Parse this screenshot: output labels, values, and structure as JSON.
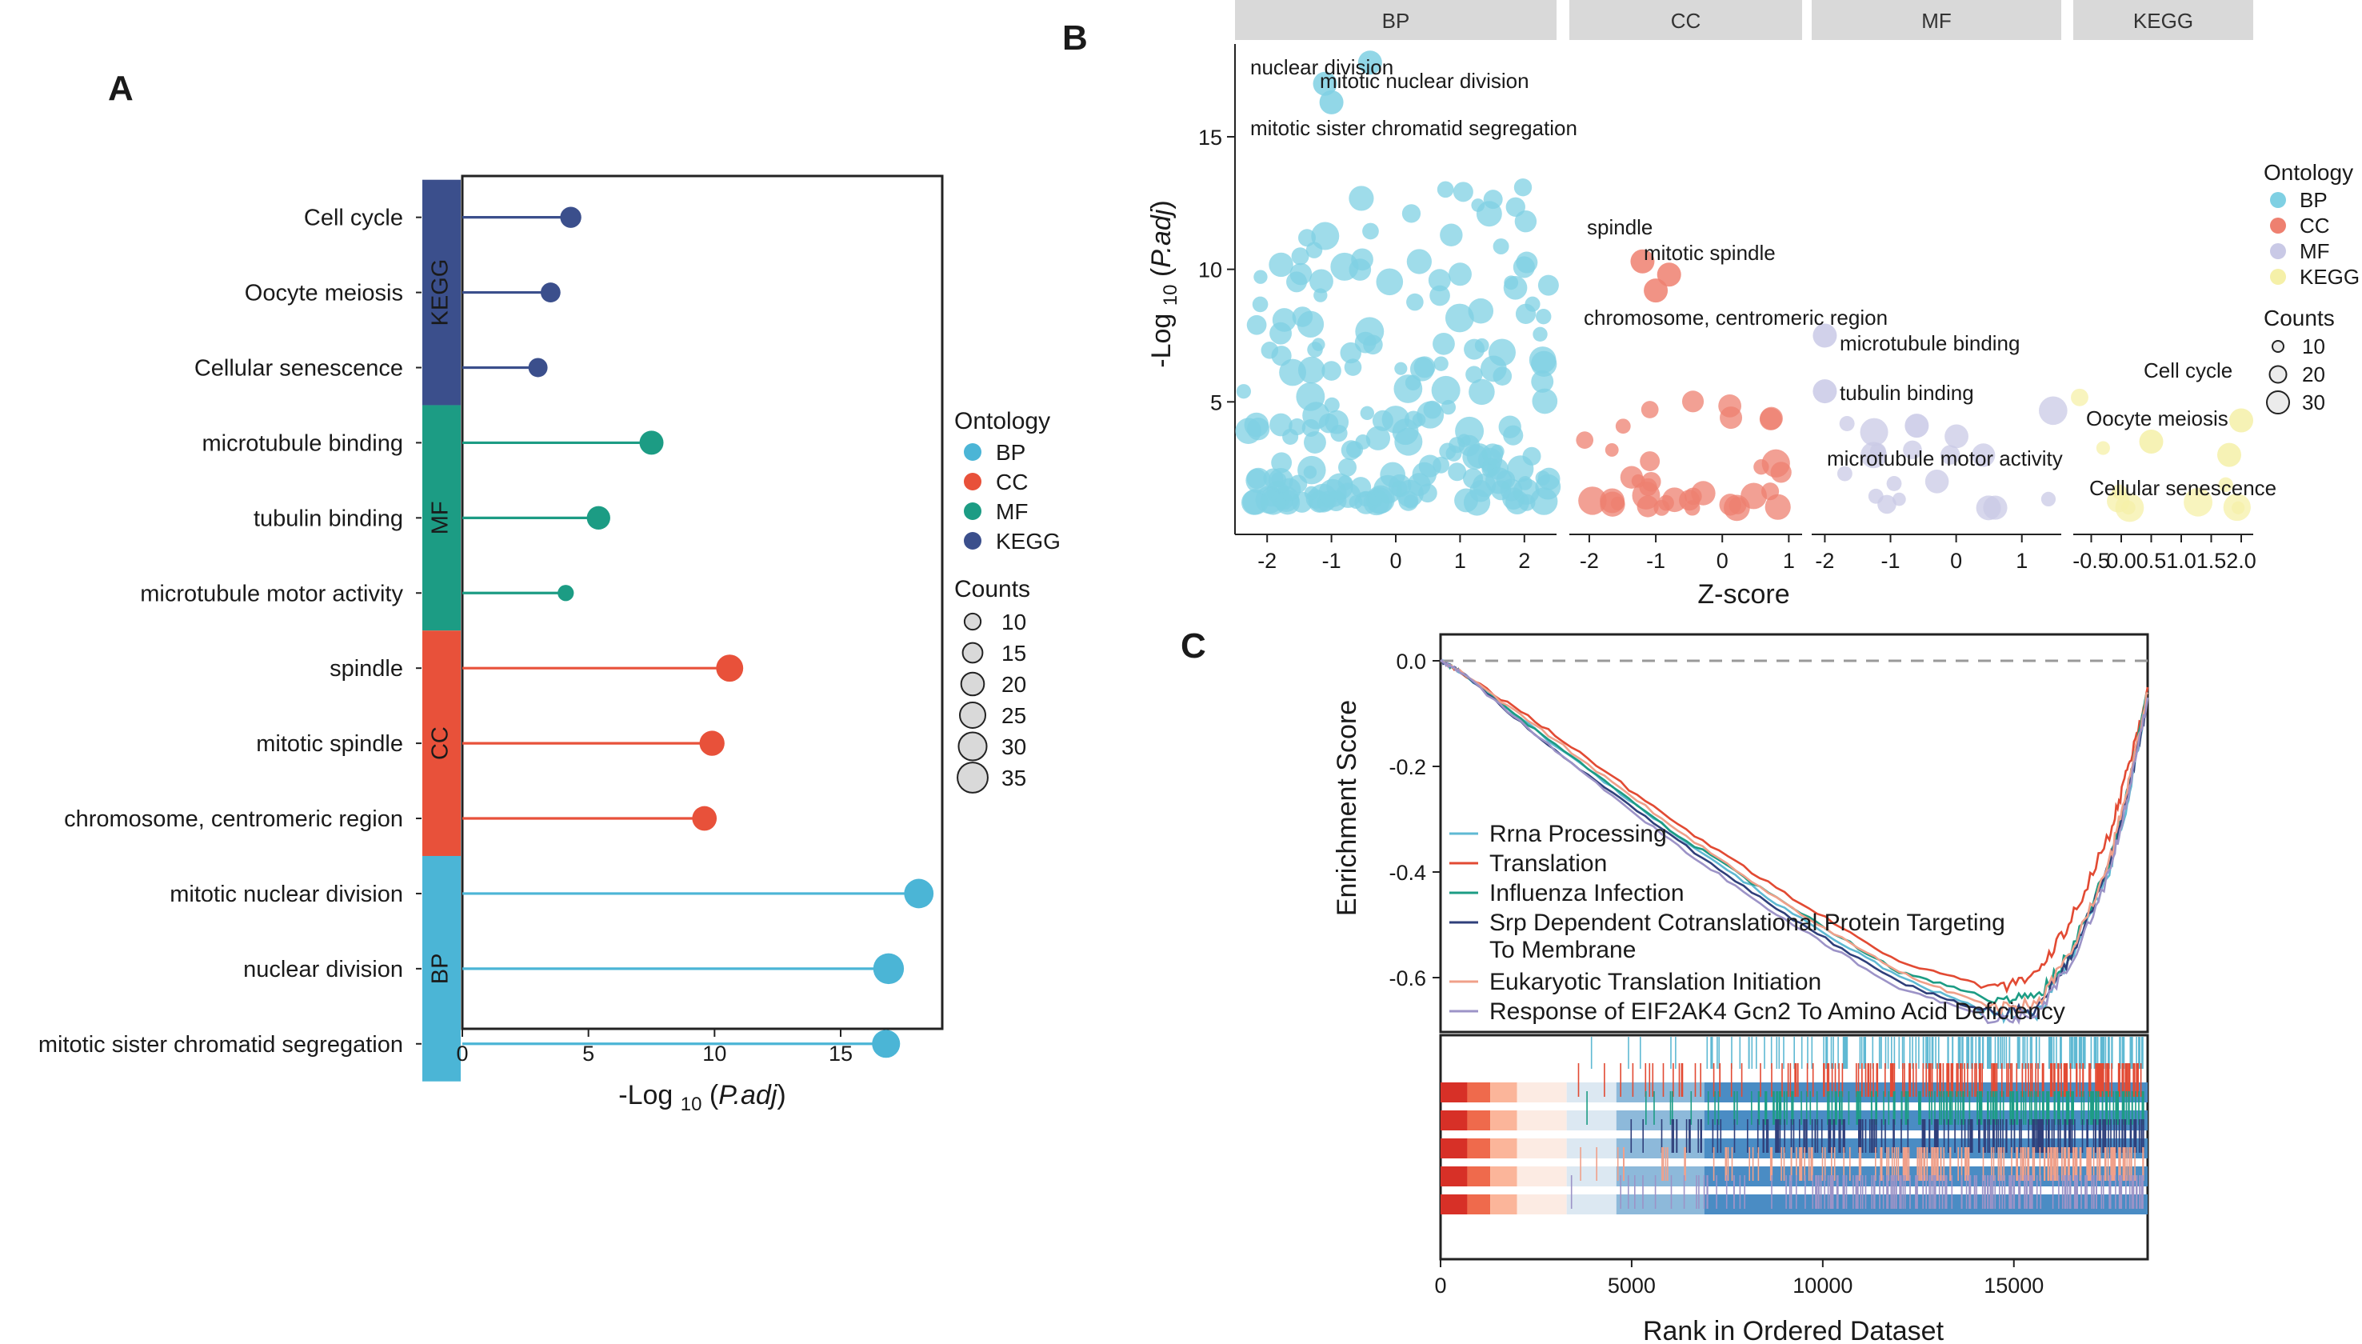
{
  "panels": {
    "a": "A",
    "b": "B",
    "c": "C"
  },
  "chart_data": [
    {
      "type": "lollipop",
      "panel": "A",
      "xlabel": "-Log 10 (P.adj)",
      "xlabel_parts": {
        "pre": "-Log",
        "sub": "10",
        "open": "(",
        "italic": "P.adj",
        "close": ")"
      },
      "xlim": [
        0,
        19
      ],
      "xticks": [
        0,
        5,
        10,
        15
      ],
      "groups": [
        {
          "name": "KEGG",
          "color": "#3B4F8C",
          "terms": [
            {
              "label": "Cell cycle",
              "value": 4.3,
              "count": 17
            },
            {
              "label": "Oocyte meiosis",
              "value": 3.5,
              "count": 15
            },
            {
              "label": "Cellular senescence",
              "value": 3.0,
              "count": 14
            }
          ]
        },
        {
          "name": "MF",
          "color": "#1C9C84",
          "terms": [
            {
              "label": "microtubule binding",
              "value": 7.5,
              "count": 22
            },
            {
              "label": "tubulin binding",
              "value": 5.4,
              "count": 21
            },
            {
              "label": "microtubule motor activity",
              "value": 4.1,
              "count": 10
            }
          ]
        },
        {
          "name": "CC",
          "color": "#E8513A",
          "terms": [
            {
              "label": "spindle",
              "value": 10.6,
              "count": 28
            },
            {
              "label": "mitotic spindle",
              "value": 9.9,
              "count": 24
            },
            {
              "label": "chromosome, centromeric region",
              "value": 9.6,
              "count": 23
            }
          ]
        },
        {
          "name": "BP",
          "color": "#4BB5D6",
          "terms": [
            {
              "label": "mitotic nuclear division",
              "value": 18.1,
              "count": 33
            },
            {
              "label": "nuclear division",
              "value": 16.9,
              "count": 36
            },
            {
              "label": "mitotic sister chromatid segregation",
              "value": 16.8,
              "count": 30
            }
          ]
        }
      ],
      "legend": {
        "ontology_title": "Ontology",
        "ontology": [
          {
            "name": "BP",
            "color": "#4BB5D6"
          },
          {
            "name": "CC",
            "color": "#E8513A"
          },
          {
            "name": "MF",
            "color": "#1C9C84"
          },
          {
            "name": "KEGG",
            "color": "#3B4F8C"
          }
        ],
        "counts_title": "Counts",
        "counts": [
          10,
          15,
          20,
          25,
          30,
          35
        ]
      }
    },
    {
      "type": "scatter",
      "panel": "B",
      "xlabel": "Z-score",
      "ylabel_parts": {
        "pre": "-Log",
        "sub": "10",
        "open": "(",
        "italic": "P.adj",
        "close": ")"
      },
      "ylim": [
        0,
        18.5
      ],
      "yticks": [
        5,
        10,
        15
      ],
      "facets": [
        {
          "name": "BP",
          "color": "#7FD0E3",
          "xlim": [
            -2.5,
            2.5
          ],
          "xticks": [
            -2,
            -1,
            0,
            1,
            2
          ],
          "xtick_labels": [
            "-2",
            "-1",
            "0",
            "1",
            "2"
          ],
          "annotations": [
            {
              "text": "nuclear division",
              "x": -1.1,
              "y": 17.0
            },
            {
              "text": "mitotic nuclear division",
              "x": -0.4,
              "y": 17.8
            },
            {
              "text": "mitotic sister chromatid segregation",
              "x": -1.0,
              "y": 16.3
            }
          ]
        },
        {
          "name": "CC",
          "color": "#EE8070",
          "xlim": [
            -2.3,
            1.2
          ],
          "xticks": [
            -2,
            -1,
            0,
            1
          ],
          "xtick_labels": [
            "-2",
            "-1",
            "0",
            "1"
          ],
          "annotations": [
            {
              "text": "spindle",
              "x": -1.2,
              "y": 10.3
            },
            {
              "text": "mitotic spindle",
              "x": -0.8,
              "y": 9.8
            },
            {
              "text": "chromosome, centromeric region",
              "x": -1.0,
              "y": 9.2
            }
          ]
        },
        {
          "name": "MF",
          "color": "#C9C9E6",
          "xlim": [
            -2.2,
            1.6
          ],
          "xticks": [
            -2,
            -1,
            0,
            1
          ],
          "xtick_labels": [
            "-2",
            "-1",
            "0",
            "1"
          ],
          "annotations": [
            {
              "text": "microtubule binding",
              "x": -2.0,
              "y": 7.5
            },
            {
              "text": "tubulin binding",
              "x": -2.0,
              "y": 5.4
            },
            {
              "text": "microtubule motor activity",
              "x": -0.6,
              "y": 4.1
            }
          ]
        },
        {
          "name": "KEGG",
          "color": "#F5F0A8",
          "xlim": [
            -0.8,
            2.2
          ],
          "xticks": [
            -0.5,
            0,
            0.5,
            1.0,
            1.5,
            2.0
          ],
          "xtick_labels": [
            "-0.5",
            "0.0",
            "0.5",
            "1.0",
            "1.5",
            "2.0"
          ],
          "annotations": [
            {
              "text": "Cell cycle",
              "x": 2.0,
              "y": 4.3
            },
            {
              "text": "Oocyte meiosis",
              "x": 0.5,
              "y": 3.5
            },
            {
              "text": "Cellular senescence",
              "x": 1.8,
              "y": 3.0
            }
          ]
        }
      ],
      "legend": {
        "ontology_title": "Ontology",
        "ontology": [
          {
            "name": "BP",
            "color": "#7FD0E3"
          },
          {
            "name": "CC",
            "color": "#EE8070"
          },
          {
            "name": "MF",
            "color": "#C9C9E6"
          },
          {
            "name": "KEGG",
            "color": "#F5F0A8"
          }
        ],
        "counts_title": "Counts",
        "counts": [
          10,
          20,
          30
        ]
      }
    },
    {
      "type": "line",
      "panel": "C",
      "ylabel": "Enrichment Score",
      "xlabel": "Rank in Ordered Dataset",
      "xlim": [
        0,
        18500
      ],
      "ylim": [
        -0.7,
        0.03
      ],
      "yticks": [
        0.0,
        -0.2,
        -0.4,
        -0.6
      ],
      "ytick_labels": [
        "0.0",
        "-0.2",
        "-0.4",
        "-0.6"
      ],
      "xticks": [
        0,
        5000,
        10000,
        15000
      ],
      "series": [
        {
          "name": "Rrna Processing",
          "color": "#5FB9D3",
          "x": [
            0,
            500,
            3000,
            6000,
            9000,
            12000,
            14500,
            15600,
            16500,
            17500,
            18000,
            18500
          ],
          "y": [
            0.0,
            -0.02,
            -0.16,
            -0.32,
            -0.47,
            -0.6,
            -0.67,
            -0.67,
            -0.56,
            -0.4,
            -0.26,
            -0.07
          ]
        },
        {
          "name": "Translation",
          "color": "#E24A33",
          "x": [
            0,
            500,
            3000,
            6000,
            9000,
            12000,
            14500,
            15600,
            16500,
            17500,
            18000,
            18500
          ],
          "y": [
            0.0,
            -0.02,
            -0.14,
            -0.3,
            -0.44,
            -0.57,
            -0.62,
            -0.6,
            -0.49,
            -0.33,
            -0.2,
            -0.05
          ]
        },
        {
          "name": "Influenza Infection",
          "color": "#1C9C84",
          "x": [
            0,
            500,
            3000,
            6000,
            9000,
            12000,
            14500,
            15600,
            16500,
            17500,
            18000,
            18500
          ],
          "y": [
            0.0,
            -0.02,
            -0.16,
            -0.32,
            -0.46,
            -0.59,
            -0.64,
            -0.64,
            -0.55,
            -0.38,
            -0.24,
            -0.06
          ]
        },
        {
          "name": "Srp Dependent Cotranslational Protein Targeting\nTo Membrane",
          "color": "#2F3F7A",
          "x": [
            0,
            500,
            3000,
            6000,
            9000,
            12000,
            14500,
            15600,
            16500,
            17500,
            18000,
            18500
          ],
          "y": [
            0.0,
            -0.02,
            -0.17,
            -0.33,
            -0.48,
            -0.61,
            -0.67,
            -0.66,
            -0.56,
            -0.39,
            -0.25,
            -0.07
          ]
        },
        {
          "name": "Eukaryotic Translation Initiation",
          "color": "#F0A08A",
          "x": [
            0,
            500,
            3000,
            6000,
            9000,
            12000,
            14500,
            15600,
            16500,
            17500,
            18000,
            18500
          ],
          "y": [
            0.0,
            -0.02,
            -0.15,
            -0.31,
            -0.46,
            -0.59,
            -0.66,
            -0.65,
            -0.55,
            -0.38,
            -0.23,
            -0.06
          ]
        },
        {
          "name": "Response of EIF2AK4 Gcn2 To Amino Acid Deficiency",
          "color": "#9C93C7",
          "x": [
            0,
            500,
            3000,
            6000,
            9000,
            12000,
            14500,
            15600,
            16500,
            17500,
            18000,
            18500
          ],
          "y": [
            0.0,
            -0.02,
            -0.17,
            -0.34,
            -0.49,
            -0.62,
            -0.68,
            -0.67,
            -0.57,
            -0.4,
            -0.25,
            -0.07
          ]
        }
      ]
    }
  ]
}
